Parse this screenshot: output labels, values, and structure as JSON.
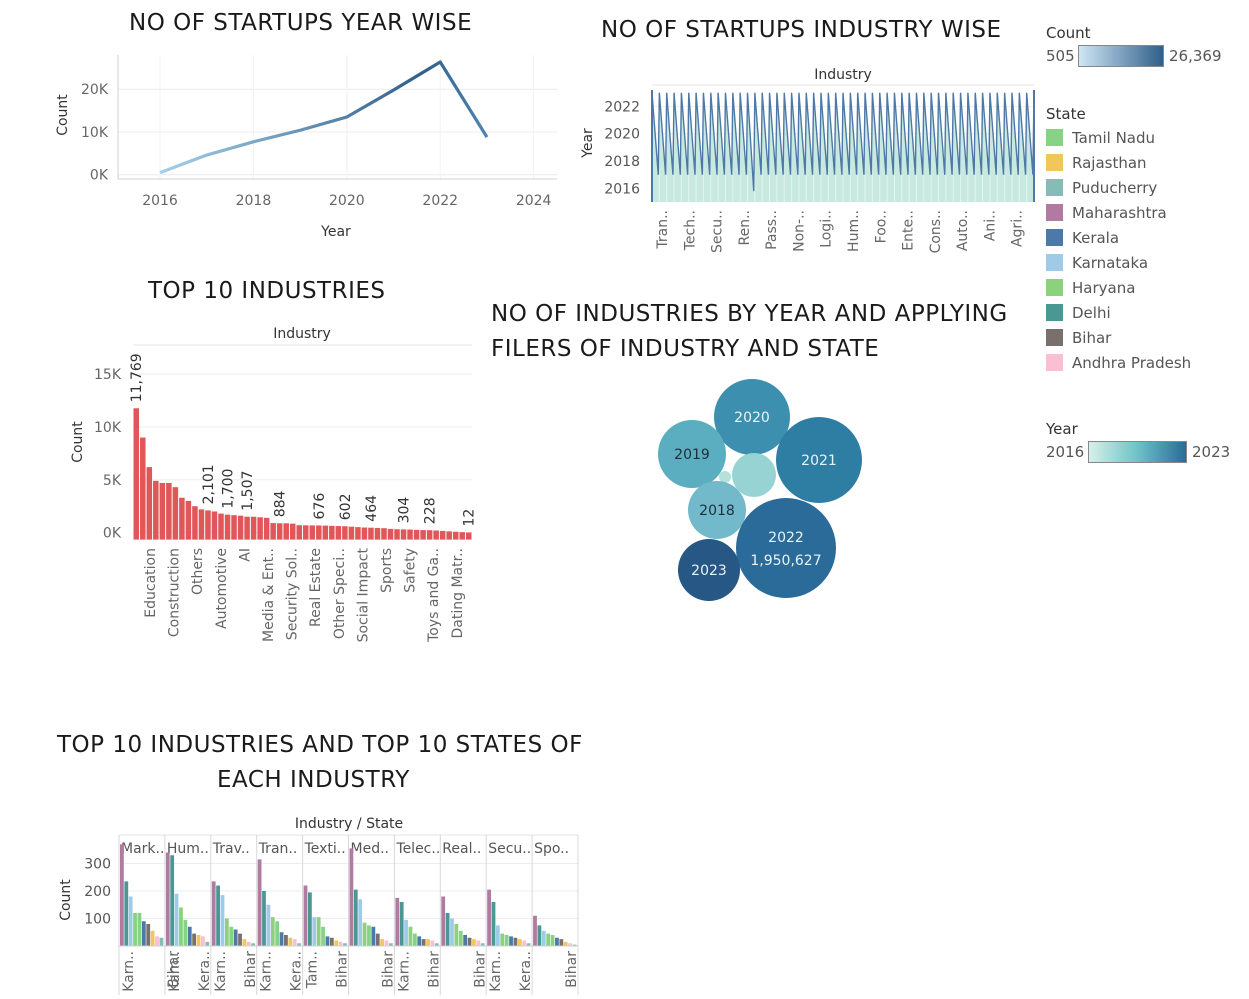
{
  "titles": {
    "year_wise": "NO OF STARTUPS YEAR WISE",
    "industry_wise": "NO OF STARTUPS INDUSTRY WISE",
    "top10": "TOP 10 INDUSTRIES",
    "bubbles_line1": "NO OF INDUSTRIES BY YEAR AND APPLYING",
    "bubbles_line2": "FILERS OF INDUSTRY AND STATE",
    "top10_states_line1": "TOP 10 INDUSTRIES AND TOP 10 STATES OF",
    "top10_states_line2": "EACH INDUSTRY"
  },
  "legends": {
    "count_title": "Count",
    "count_min": "505",
    "count_max": "26,369",
    "state_title": "State",
    "states": [
      {
        "name": "Tamil Nadu",
        "color": "#86d385"
      },
      {
        "name": "Rajasthan",
        "color": "#f1c75a"
      },
      {
        "name": "Puducherry",
        "color": "#86bcb6"
      },
      {
        "name": "Maharashtra",
        "color": "#b07aa1"
      },
      {
        "name": "Kerala",
        "color": "#4e79a7"
      },
      {
        "name": "Karnataka",
        "color": "#a0cbe8"
      },
      {
        "name": "Haryana",
        "color": "#8cd17d"
      },
      {
        "name": "Delhi",
        "color": "#499894"
      },
      {
        "name": "Bihar",
        "color": "#79706e"
      },
      {
        "name": "Andhra Pradesh",
        "color": "#fabfd2"
      }
    ],
    "year_title": "Year",
    "year_min": "2016",
    "year_max": "2023"
  },
  "chart_data": [
    {
      "id": "year_wise",
      "type": "line",
      "title": "NO OF STARTUPS YEAR WISE",
      "xlabel": "Year",
      "ylabel": "Count",
      "x": [
        2016,
        2017,
        2018,
        2019,
        2020,
        2021,
        2022,
        2023
      ],
      "values": [
        505,
        4600,
        7700,
        10400,
        13500,
        19800,
        26369,
        8800
      ],
      "x_ticks": [
        "2016",
        "2018",
        "2020",
        "2022",
        "2024"
      ],
      "y_ticks": [
        "0K",
        "10K",
        "20K"
      ],
      "xlim": [
        2015.1,
        2024.5
      ],
      "ylim": [
        -1000,
        28000
      ],
      "color_scale": [
        "#a6d0e9",
        "#2f5f8a"
      ]
    },
    {
      "id": "industry_wise",
      "type": "area",
      "title": "NO OF STARTUPS INDUSTRY WISE",
      "header": "Industry",
      "ylabel": "Year",
      "y_ticks": [
        "2016",
        "2018",
        "2020",
        "2022"
      ],
      "ylim": [
        2015,
        2023.2
      ],
      "categories": [
        "Tran..",
        "Tech..",
        "Secu..",
        "Ren..",
        "Pass..",
        "Non-..",
        "Logi..",
        "Hum..",
        "Foo..",
        "Ente..",
        "Cons..",
        "Auto..",
        "Ani..",
        "Agri.."
      ],
      "cycles": 52,
      "note_rule": "sawtooth from 2023 down to 2017 repeated per industry"
    },
    {
      "id": "top10",
      "type": "bar",
      "title": "TOP 10 INDUSTRIES",
      "header": "Industry",
      "ylabel": "Count",
      "y_ticks": [
        "0K",
        "5K",
        "10K",
        "15K"
      ],
      "ylim": [
        -700,
        17000
      ],
      "values": [
        11769,
        9000,
        6200,
        4900,
        4700,
        4700,
        4300,
        3300,
        3000,
        2500,
        2200,
        2101,
        2000,
        1800,
        1700,
        1650,
        1600,
        1507,
        1500,
        1450,
        1400,
        900,
        884,
        880,
        850,
        700,
        690,
        680,
        676,
        660,
        640,
        620,
        602,
        560,
        520,
        480,
        464,
        440,
        420,
        350,
        320,
        304,
        290,
        260,
        240,
        228,
        200,
        160,
        120,
        80,
        40,
        12
      ],
      "bar_labels": [
        {
          "index": 0,
          "text": "11,769"
        },
        {
          "index": 11,
          "text": "2,101"
        },
        {
          "index": 14,
          "text": "1,700"
        },
        {
          "index": 17,
          "text": "1,507"
        },
        {
          "index": 22,
          "text": "884"
        },
        {
          "index": 28,
          "text": "676"
        },
        {
          "index": 32,
          "text": "602"
        },
        {
          "index": 36,
          "text": "464"
        },
        {
          "index": 41,
          "text": "304"
        },
        {
          "index": 45,
          "text": "228"
        },
        {
          "index": 51,
          "text": "12"
        }
      ],
      "tick_labels": [
        {
          "index": 2,
          "text": "Education"
        },
        {
          "index": 6,
          "text": "Construction"
        },
        {
          "index": 10,
          "text": "Others"
        },
        {
          "index": 14,
          "text": "Automotive"
        },
        {
          "index": 18,
          "text": "AI"
        },
        {
          "index": 22,
          "text": "Media & Ent.."
        },
        {
          "index": 26,
          "text": "Security Sol.."
        },
        {
          "index": 30,
          "text": "Real Estate"
        },
        {
          "index": 34,
          "text": "Other Speci.."
        },
        {
          "index": 38,
          "text": "Social Impact"
        },
        {
          "index": 42,
          "text": "Sports"
        },
        {
          "index": 46,
          "text": "Safety"
        },
        {
          "index": 50,
          "text": "Toys and Ga.."
        },
        {
          "index": 53,
          "text": "Dating Matr.."
        }
      ],
      "color": "#e15759"
    },
    {
      "id": "bubbles",
      "type": "scatter",
      "title": "NO OF INDUSTRIES BY YEAR AND APPLYING FILERS OF INDUSTRY AND STATE",
      "bubbles": [
        {
          "label": "2020",
          "value": "",
          "color": "#3d8fb0",
          "text": "#eaf4f8"
        },
        {
          "label": "2019",
          "value": "",
          "color": "#5aaec0",
          "text": "#1d2f3a"
        },
        {
          "label": "2021",
          "value": "",
          "color": "#2e7ea4",
          "text": "#eaf4f8"
        },
        {
          "label": "",
          "value": "",
          "color": "#98d3d3",
          "text": "#1d2f3a"
        },
        {
          "label": "",
          "value": "",
          "color": "#b5e1da",
          "text": "#1d2f3a"
        },
        {
          "label": "2018",
          "value": "",
          "color": "#72bacb",
          "text": "#1d2f3a"
        },
        {
          "label": "2022",
          "value": "1,950,627",
          "color": "#2a6b99",
          "text": "#eaf4f8"
        },
        {
          "label": "2023",
          "value": "",
          "color": "#265785",
          "text": "#eaf4f8"
        }
      ]
    },
    {
      "id": "top10_states",
      "type": "bar",
      "title": "TOP 10 INDUSTRIES AND TOP 10 STATES OF EACH INDUSTRY",
      "header": "Industry / State",
      "ylabel": "Count",
      "y_ticks": [
        "100",
        "200",
        "300"
      ],
      "ylim": [
        0,
        360
      ],
      "groups": [
        {
          "name": "Mark..",
          "values": [
            370,
            235,
            180,
            120,
            120,
            90,
            80,
            55,
            35,
            30
          ],
          "labels": [
            "Karn..",
            "",
            "",
            "Bihar"
          ]
        },
        {
          "name": "Hum..",
          "values": [
            340,
            330,
            190,
            140,
            95,
            70,
            45,
            40,
            35,
            15
          ],
          "labels": [
            "Karn..",
            "",
            "Kera.."
          ]
        },
        {
          "name": "Trav..",
          "values": [
            235,
            220,
            185,
            100,
            70,
            60,
            45,
            25,
            15,
            10
          ],
          "labels": [
            "Karn..",
            "",
            "Bihar"
          ]
        },
        {
          "name": "Tran..",
          "values": [
            315,
            200,
            150,
            105,
            90,
            50,
            40,
            30,
            25,
            10
          ],
          "labels": [
            "Karn..",
            "",
            "Kera.."
          ]
        },
        {
          "name": "Texti..",
          "values": [
            220,
            195,
            105,
            105,
            70,
            35,
            30,
            20,
            15,
            10
          ],
          "labels": [
            "Tam..",
            "",
            "Bihar"
          ]
        },
        {
          "name": "Med..",
          "values": [
            355,
            205,
            170,
            85,
            75,
            70,
            45,
            25,
            20,
            10
          ],
          "labels": [
            "",
            "",
            "Bihar"
          ]
        },
        {
          "name": "Telec..",
          "values": [
            175,
            160,
            95,
            70,
            45,
            35,
            25,
            25,
            20,
            10
          ],
          "labels": [
            "Karn..",
            "",
            "Bihar"
          ]
        },
        {
          "name": "Real..",
          "values": [
            180,
            120,
            100,
            80,
            55,
            40,
            30,
            25,
            20,
            10
          ],
          "labels": [
            "",
            "",
            "Bihar"
          ]
        },
        {
          "name": "Secu..",
          "values": [
            205,
            160,
            75,
            45,
            40,
            35,
            30,
            25,
            20,
            10
          ],
          "labels": [
            "Karn..",
            "",
            "Kera.."
          ]
        },
        {
          "name": "Spo..",
          "values": [
            110,
            75,
            55,
            45,
            40,
            30,
            25,
            15,
            10,
            5
          ],
          "labels": [
            "",
            "",
            "Bihar"
          ]
        }
      ],
      "state_colors": [
        "#b07aa1",
        "#499894",
        "#a0cbe8",
        "#8cd17d",
        "#86d385",
        "#4e79a7",
        "#79706e",
        "#f1c75a",
        "#fabfd2",
        "#86bcb6"
      ]
    }
  ]
}
